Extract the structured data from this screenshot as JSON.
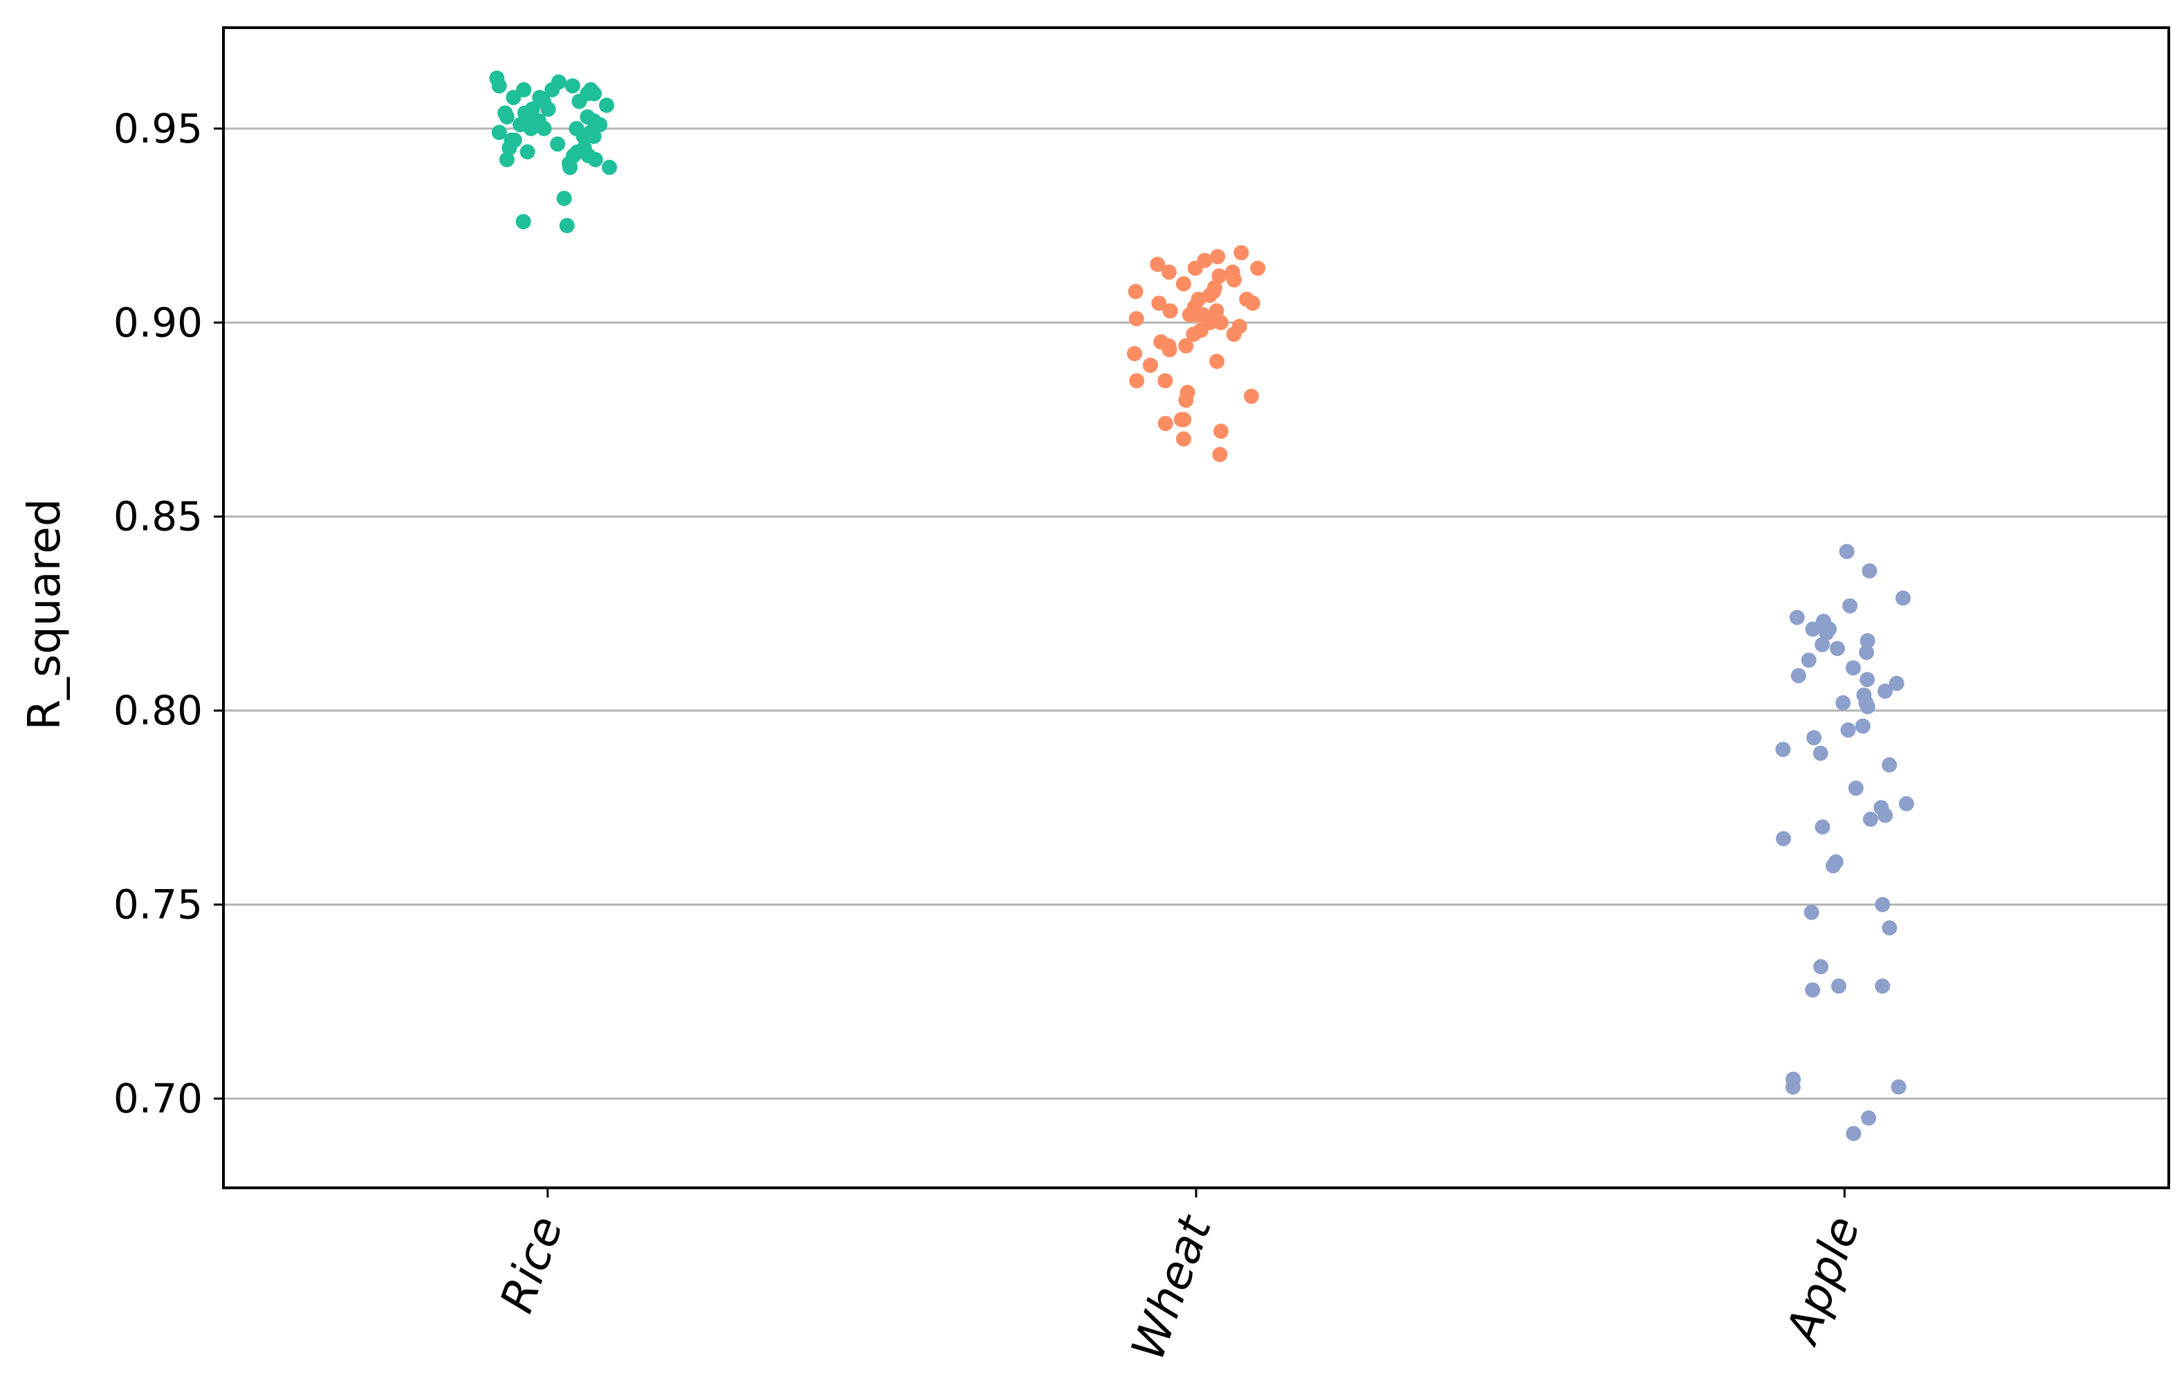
{
  "chart_data": {
    "type": "scatter",
    "subtype": "strip",
    "title": "",
    "xlabel": "",
    "ylabel": "R_squared",
    "ylim": [
      0.677,
      0.976
    ],
    "yticks": [
      "0.70",
      "0.75",
      "0.80",
      "0.85",
      "0.90",
      "0.95"
    ],
    "grid": "horizontal",
    "categories": [
      "Rice",
      "Wheat",
      "Apple"
    ],
    "series": [
      {
        "color": "#1fbf9a",
        "values": [
          0.925,
          0.926,
          0.932,
          0.94,
          0.94,
          0.941,
          0.942,
          0.942,
          0.943,
          0.943,
          0.944,
          0.944,
          0.945,
          0.945,
          0.946,
          0.947,
          0.947,
          0.948,
          0.948,
          0.949,
          0.949,
          0.95,
          0.95,
          0.95,
          0.951,
          0.951,
          0.951,
          0.952,
          0.952,
          0.952,
          0.953,
          0.953,
          0.954,
          0.954,
          0.955,
          0.955,
          0.956,
          0.957,
          0.957,
          0.958,
          0.958,
          0.959,
          0.959,
          0.96,
          0.96,
          0.96,
          0.961,
          0.961,
          0.962,
          0.963
        ]
      },
      {
        "color": "#fc8d62",
        "values": [
          0.866,
          0.87,
          0.872,
          0.874,
          0.875,
          0.875,
          0.88,
          0.881,
          0.882,
          0.885,
          0.885,
          0.889,
          0.89,
          0.892,
          0.893,
          0.894,
          0.894,
          0.895,
          0.897,
          0.897,
          0.898,
          0.899,
          0.9,
          0.9,
          0.901,
          0.902,
          0.902,
          0.902,
          0.903,
          0.903,
          0.904,
          0.905,
          0.905,
          0.906,
          0.906,
          0.907,
          0.908,
          0.908,
          0.909,
          0.91,
          0.911,
          0.912,
          0.913,
          0.913,
          0.914,
          0.914,
          0.915,
          0.916,
          0.917,
          0.918
        ]
      },
      {
        "color": "#8da0cb",
        "values": [
          0.691,
          0.695,
          0.703,
          0.703,
          0.705,
          0.728,
          0.729,
          0.729,
          0.734,
          0.744,
          0.748,
          0.75,
          0.76,
          0.761,
          0.767,
          0.77,
          0.772,
          0.773,
          0.775,
          0.776,
          0.78,
          0.786,
          0.789,
          0.79,
          0.793,
          0.795,
          0.796,
          0.801,
          0.802,
          0.802,
          0.804,
          0.807,
          0.808,
          0.809,
          0.811,
          0.813,
          0.815,
          0.816,
          0.817,
          0.818,
          0.82,
          0.821,
          0.821,
          0.823,
          0.824,
          0.827,
          0.829,
          0.836,
          0.841,
          0.805
        ]
      }
    ]
  }
}
